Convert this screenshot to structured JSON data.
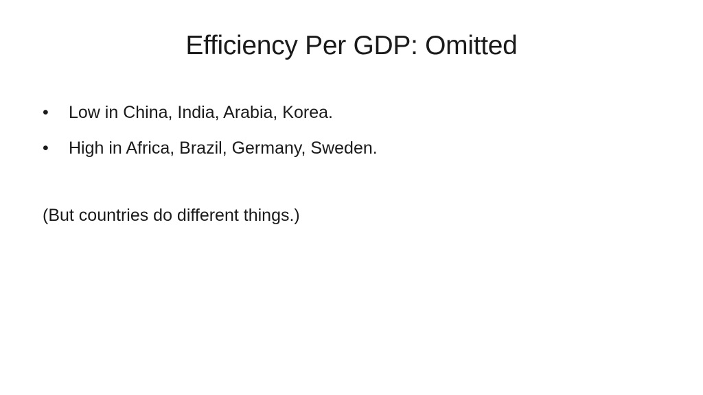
{
  "slide": {
    "title": "Efficiency Per GDP: Omitted",
    "bullets": [
      {
        "marker": "•",
        "text": "Low in China, India, Arabia, Korea."
      },
      {
        "marker": "•",
        "text": "High in Africa, Brazil, Germany, Sweden."
      }
    ],
    "note": "(But countries do different things.)"
  }
}
